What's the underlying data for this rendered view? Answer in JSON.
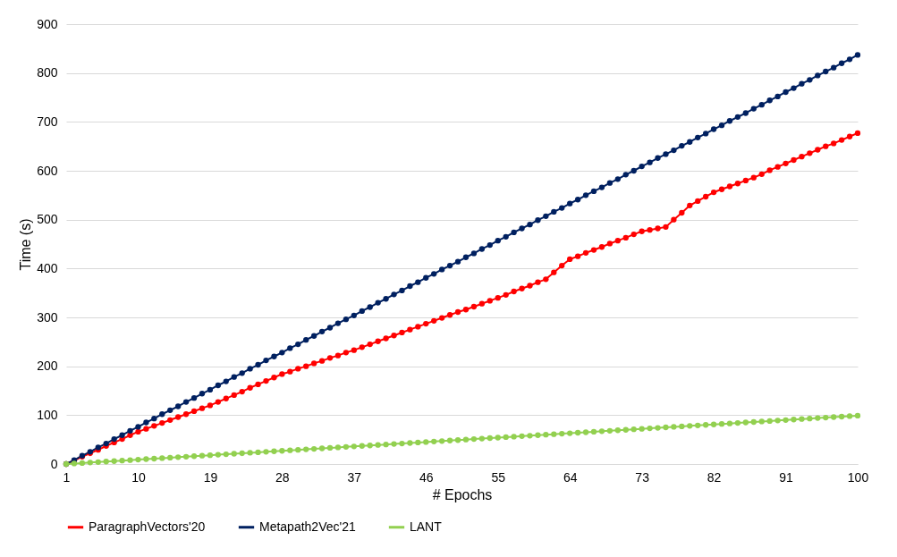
{
  "chart_data": {
    "type": "line",
    "xlabel": "# Epochs",
    "ylabel": "Time (s)",
    "x": [
      1,
      2,
      3,
      4,
      5,
      6,
      7,
      8,
      9,
      10,
      11,
      12,
      13,
      14,
      15,
      16,
      17,
      18,
      19,
      20,
      21,
      22,
      23,
      24,
      25,
      26,
      27,
      28,
      29,
      30,
      31,
      32,
      33,
      34,
      35,
      36,
      37,
      38,
      39,
      40,
      41,
      42,
      43,
      44,
      45,
      46,
      47,
      48,
      49,
      50,
      51,
      52,
      53,
      54,
      55,
      56,
      57,
      58,
      59,
      60,
      61,
      62,
      63,
      64,
      65,
      66,
      67,
      68,
      69,
      70,
      71,
      72,
      73,
      74,
      75,
      76,
      77,
      78,
      79,
      80,
      81,
      82,
      83,
      84,
      85,
      86,
      87,
      88,
      89,
      90,
      91,
      92,
      93,
      94,
      95,
      96,
      97,
      98,
      99,
      100
    ],
    "series": [
      {
        "name": "ParagraphVectors'20",
        "color": "#ff0000",
        "values": [
          0,
          7,
          15,
          22,
          29,
          37,
          44,
          51,
          59,
          66,
          72,
          78,
          84,
          90,
          96,
          102,
          108,
          114,
          120,
          127,
          134,
          141,
          148,
          156,
          163,
          170,
          177,
          184,
          189,
          195,
          200,
          206,
          211,
          217,
          222,
          228,
          233,
          239,
          245,
          251,
          257,
          263,
          269,
          275,
          281,
          287,
          293,
          299,
          305,
          311,
          316,
          322,
          328,
          334,
          340,
          346,
          353,
          359,
          365,
          372,
          378,
          392,
          406,
          419,
          425,
          432,
          438,
          444,
          451,
          457,
          463,
          470,
          476,
          479,
          482,
          485,
          500,
          514,
          529,
          538,
          547,
          556,
          562,
          568,
          574,
          580,
          586,
          593,
          601,
          608,
          615,
          622,
          629,
          636,
          643,
          650,
          656,
          663,
          670,
          677
        ]
      },
      {
        "name": "Metapath2Vec'21",
        "color": "#002060",
        "values": [
          0,
          8,
          17,
          25,
          34,
          42,
          51,
          59,
          68,
          76,
          85,
          93,
          102,
          110,
          118,
          127,
          135,
          144,
          152,
          161,
          169,
          178,
          186,
          195,
          203,
          212,
          220,
          228,
          237,
          245,
          254,
          262,
          271,
          279,
          288,
          296,
          304,
          313,
          321,
          330,
          338,
          347,
          355,
          364,
          372,
          381,
          389,
          398,
          406,
          414,
          423,
          431,
          440,
          448,
          457,
          465,
          474,
          482,
          490,
          499,
          507,
          516,
          524,
          533,
          541,
          550,
          558,
          566,
          575,
          583,
          592,
          600,
          609,
          617,
          626,
          634,
          642,
          651,
          659,
          668,
          676,
          685,
          693,
          702,
          710,
          718,
          727,
          735,
          744,
          752,
          761,
          769,
          778,
          786,
          795,
          803,
          811,
          820,
          828,
          837
        ]
      },
      {
        "name": "LANT",
        "color": "#92d050",
        "values": [
          0,
          1,
          2,
          3,
          4,
          5,
          6,
          7,
          8,
          9,
          10,
          11,
          12,
          13,
          14,
          15,
          16,
          17,
          18,
          19,
          20,
          21,
          22,
          23,
          24,
          25,
          26,
          27,
          28,
          29,
          30,
          31,
          32,
          33,
          34,
          35,
          36,
          37,
          38,
          39,
          40,
          41,
          42,
          43,
          44,
          45,
          46,
          47,
          48,
          49,
          50,
          51,
          52,
          53,
          54,
          55,
          56,
          57,
          58,
          59,
          60,
          61,
          62,
          63,
          64,
          65,
          66,
          67,
          68,
          69,
          70,
          71,
          72,
          73,
          74,
          75,
          76,
          77,
          78,
          79,
          80,
          81,
          82,
          83,
          84,
          85,
          86,
          87,
          88,
          89,
          90,
          91,
          92,
          93,
          94,
          95,
          96,
          97,
          98,
          99
        ]
      }
    ],
    "xlim": [
      1,
      100
    ],
    "xticks": [
      1,
      10,
      19,
      28,
      37,
      46,
      55,
      64,
      73,
      82,
      91,
      100
    ],
    "ylim": [
      0,
      900
    ],
    "yticks": [
      0,
      100,
      200,
      300,
      400,
      500,
      600,
      700,
      800,
      900
    ],
    "grid": "y",
    "legend": "bottom",
    "marker": "circle",
    "line_style": "solid"
  }
}
